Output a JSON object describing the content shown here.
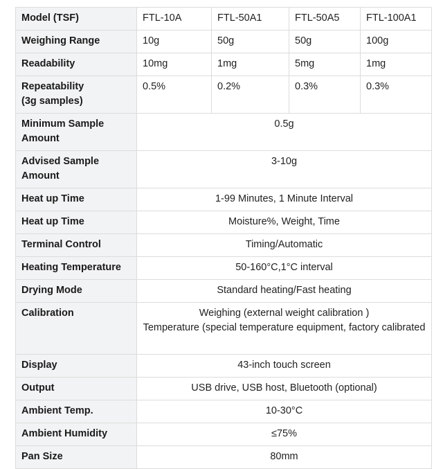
{
  "table": {
    "header": [
      "Model (TSF)",
      "FTL-10A",
      "FTL-50A1",
      "FTL-50A5",
      "FTL-100A1"
    ],
    "rows_split": [
      {
        "label": "Weighing Range",
        "values": [
          "10g",
          "50g",
          "50g",
          "100g"
        ]
      },
      {
        "label": "Readability",
        "values": [
          "10mg",
          "1mg",
          "5mg",
          "1mg"
        ]
      },
      {
        "label": "Repeatability\n(3g samples)",
        "values": [
          "0.5%",
          "0.2%",
          "0.3%",
          "0.3%"
        ]
      }
    ],
    "rows_span": [
      {
        "label": "Minimum Sample Amount",
        "value": "0.5g"
      },
      {
        "label": "Advised Sample Amount",
        "value": "3-10g"
      },
      {
        "label": "Heat up Time",
        "value": "1-99 Minutes, 1 Minute Interval"
      },
      {
        "label": "Heat up Time",
        "value": "Moisture%, Weight, Time"
      },
      {
        "label": "Terminal Control",
        "value": "Timing/Automatic"
      },
      {
        "label": "Heating Temperature",
        "value": "50-160°C,1°C interval"
      },
      {
        "label": "Drying Mode",
        "value": "Standard heating/Fast heating"
      },
      {
        "label": "Calibration",
        "value": "Weighing (external weight calibration )\nTemperature (special temperature equipment, factory calibrated"
      },
      {
        "label": "Display",
        "value": "43-inch touch screen"
      },
      {
        "label": "Output",
        "value": "USB drive, USB host, Bluetooth (optional)"
      },
      {
        "label": "Ambient Temp.",
        "value": "10-30°C"
      },
      {
        "label": "Ambient Humidity",
        "value": "≤75%"
      },
      {
        "label": "Pan Size",
        "value": "80mm"
      }
    ]
  }
}
